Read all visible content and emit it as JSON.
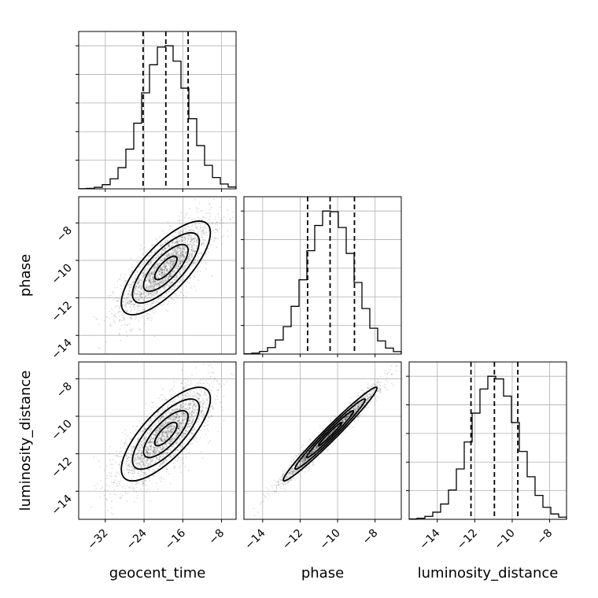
{
  "chart_data": {
    "type": "corner",
    "parameters": [
      {
        "name": "geocent_time",
        "label": "geocent_time",
        "range": [
          -37.5,
          -5
        ],
        "ticks": [
          -32,
          -24,
          -16,
          -8
        ],
        "mean": -19.5,
        "sigma": 4.6,
        "quantiles": [
          -24.2,
          -19.5,
          -14.9
        ]
      },
      {
        "name": "phase",
        "label": "phase",
        "range": [
          -15,
          -6.6
        ],
        "ticks": [
          -14,
          -12,
          -10,
          -8
        ],
        "mean": -10.4,
        "sigma": 1.25,
        "quantiles": [
          -11.6,
          -10.4,
          -9.1
        ]
      },
      {
        "name": "luminosity_distance",
        "label": "luminosity_distance",
        "range": [
          -15.5,
          -7.1
        ],
        "ticks": [
          -14,
          -12,
          -10,
          -8
        ],
        "mean": -10.95,
        "sigma": 1.25,
        "quantiles": [
          -12.2,
          -10.95,
          -9.7
        ]
      }
    ],
    "correlations": {
      "0-1": 0.75,
      "0-2": 0.75,
      "1-2": 0.98
    },
    "hist_bins": 20,
    "contour_levels_sigma": [
      0.5,
      1,
      1.5,
      2
    ],
    "quantile_levels": [
      0.16,
      0.5,
      0.84
    ],
    "sample_color": "#000000",
    "grid": true
  }
}
